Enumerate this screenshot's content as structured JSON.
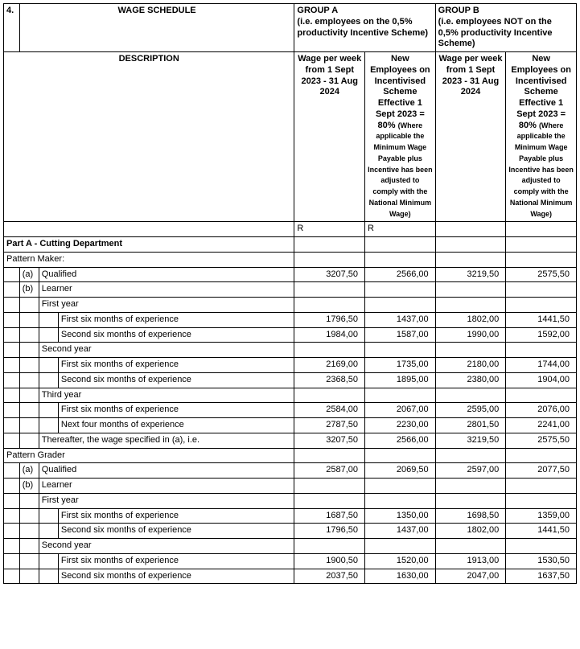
{
  "section_number": "4.",
  "title": "WAGE SCHEDULE",
  "group_a_header": "GROUP A\n(i.e. employees on the 0,5% productivity Incentive Scheme)",
  "group_b_header": "GROUP B\n(i.e. employees NOT on the 0,5% productivity Incentive Scheme)",
  "description_label": "DESCRIPTION",
  "wage_col": "Wage per week from 1 Sept 2023 - 31 Aug 2024",
  "new_emp_col_main": "New Employees on Incentivised Scheme Effective 1 Sept 2023 = 80%",
  "new_emp_col_sub": "(Where applicable the Minimum Wage Payable plus Incentive has been adjusted to comply with the National Minimum Wage)",
  "currency": "R",
  "part_a_title": "Part A - Cutting Department",
  "pattern_maker": "Pattern Maker:",
  "pattern_grader": "Pattern Grader",
  "labels": {
    "a": "(a)",
    "b": "(b)",
    "qualified": "Qualified",
    "learner": "Learner",
    "first_year": "First year",
    "second_year": "Second year",
    "third_year": "Third year",
    "fs6": "First six months of experience",
    "ss6": "Second six months of experience",
    "nf4": "Next four months of experience",
    "thereafter": "Thereafter, the wage specified in (a), i.e."
  },
  "rows": {
    "pm_qualified": [
      "3207,50",
      "2566,00",
      "3219,50",
      "2575,50"
    ],
    "pm_y1_fs6": [
      "1796,50",
      "1437,00",
      "1802,00",
      "1441,50"
    ],
    "pm_y1_ss6": [
      "1984,00",
      "1587,00",
      "1990,00",
      "1592,00"
    ],
    "pm_y2_fs6": [
      "2169,00",
      "1735,00",
      "2180,00",
      "1744,00"
    ],
    "pm_y2_ss6": [
      "2368,50",
      "1895,00",
      "2380,00",
      "1904,00"
    ],
    "pm_y3_fs6": [
      "2584,00",
      "2067,00",
      "2595,00",
      "2076,00"
    ],
    "pm_y3_nf4": [
      "2787,50",
      "2230,00",
      "2801,50",
      "2241,00"
    ],
    "pm_thereafter": [
      "3207,50",
      "2566,00",
      "3219,50",
      "2575,50"
    ],
    "pg_qualified": [
      "2587,00",
      "2069,50",
      "2597,00",
      "2077,50"
    ],
    "pg_y1_fs6": [
      "1687,50",
      "1350,00",
      "1698,50",
      "1359,00"
    ],
    "pg_y1_ss6": [
      "1796,50",
      "1437,00",
      "1802,00",
      "1441,50"
    ],
    "pg_y2_fs6": [
      "1900,50",
      "1520,00",
      "1913,00",
      "1530,50"
    ],
    "pg_y2_ss6": [
      "2037,50",
      "1630,00",
      "2047,00",
      "1637,50"
    ]
  }
}
